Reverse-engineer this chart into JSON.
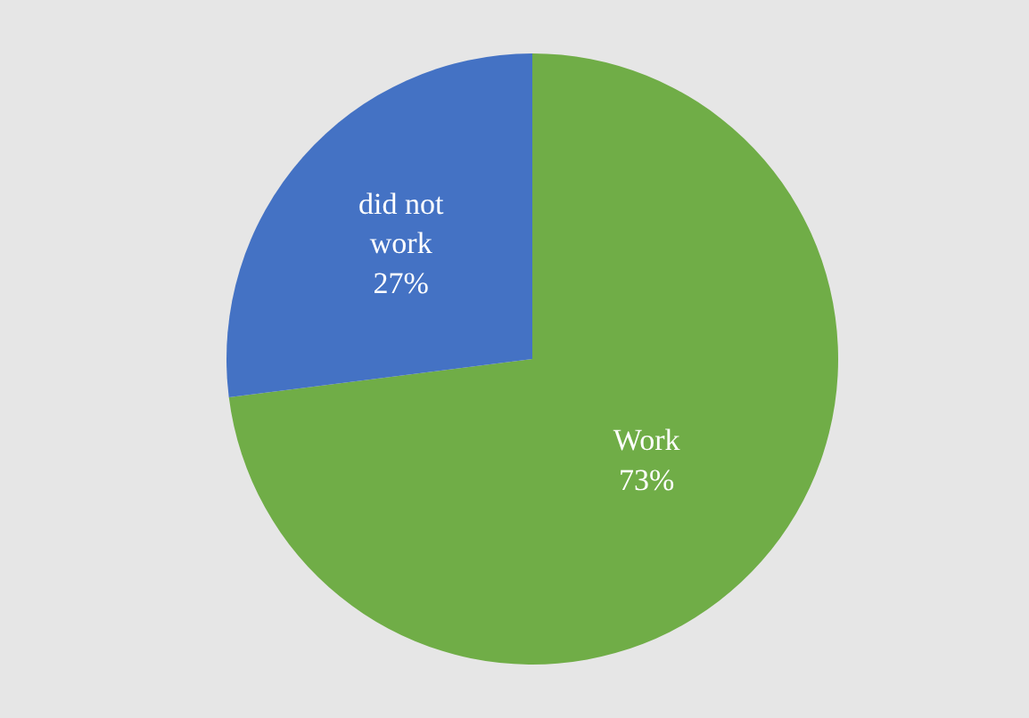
{
  "chart_data": {
    "type": "pie",
    "categories": [
      "Work",
      "did not work"
    ],
    "values": [
      73,
      27
    ],
    "value_labels": [
      "73%",
      "27%"
    ],
    "colors": [
      "#70ad47",
      "#4472c4"
    ],
    "legend": false
  }
}
